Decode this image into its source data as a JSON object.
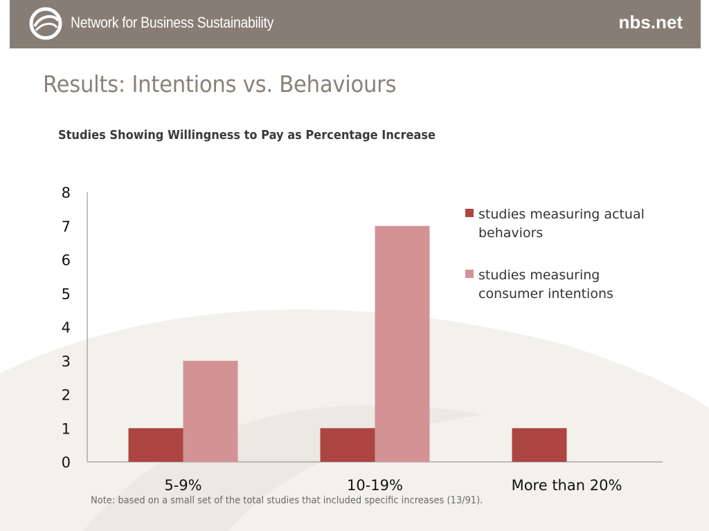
{
  "header": {
    "org_name": "Network for Business Sustainability",
    "site": "nbs.net",
    "background_color": "#877d74"
  },
  "slide": {
    "title": "Results: Intentions vs. Behaviours",
    "note": "Note: based on a small set of the total studies that included specific increases (13/91)."
  },
  "chart_data": {
    "type": "bar",
    "title": "Studies Showing Willingness to Pay as Percentage Increase",
    "xlabel": "",
    "ylabel": "",
    "categories": [
      "5-9%",
      "10-19%",
      "More than 20%"
    ],
    "series": [
      {
        "name": "studies measuring actual behaviors",
        "color": "#ad4543",
        "values": [
          1,
          1,
          1
        ]
      },
      {
        "name": "studies measuring consumer intentions",
        "color": "#d39394",
        "values": [
          3,
          7,
          0
        ]
      }
    ],
    "ylim": [
      0,
      8
    ],
    "yticks": [
      0,
      1,
      2,
      3,
      4,
      5,
      6,
      7,
      8
    ],
    "grid": false,
    "legend_position": "top-right"
  }
}
